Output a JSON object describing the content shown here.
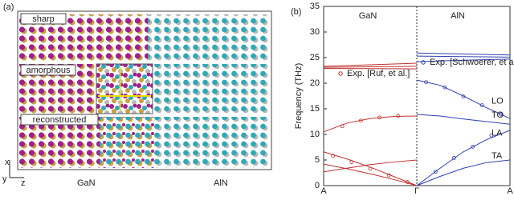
{
  "panel_a": {
    "label": "(a)",
    "interfaces": [
      "sharp",
      "amorphous",
      "reconstructed"
    ],
    "axes": [
      "x",
      "y",
      "z"
    ],
    "materials": [
      "GaN",
      "AlN"
    ]
  },
  "chart_data": {
    "type": "line",
    "panel_label": "(b)",
    "ylabel": "Frequency (THz)",
    "xlim": [
      -1,
      1
    ],
    "xticks": [
      {
        "value": -1,
        "label": "A"
      },
      {
        "value": 0,
        "label": "Γ"
      },
      {
        "value": 1,
        "label": "A"
      }
    ],
    "ylim": [
      0,
      35
    ],
    "yticks": [
      0,
      5,
      10,
      15,
      20,
      25,
      30,
      35
    ],
    "region_labels": [
      "GaN",
      "AlN"
    ],
    "series": [
      {
        "color": "#c03030",
        "x": [
          -1,
          -0.5,
          0
        ],
        "values": [
          23.3,
          23.6,
          23.9
        ]
      },
      {
        "color": "#c03030",
        "x": [
          -1,
          -0.5,
          0
        ],
        "values": [
          23.1,
          23.2,
          23.3
        ]
      },
      {
        "color": "#c03030",
        "x": [
          -1,
          -0.5,
          0
        ],
        "values": [
          22.9,
          22.85,
          22.8
        ]
      },
      {
        "color": "#c03030",
        "x": [
          -1,
          -0.75,
          -0.5,
          -0.25,
          0
        ],
        "values": [
          10.5,
          12.2,
          13.1,
          13.5,
          13.6
        ]
      },
      {
        "color": "#c03030",
        "x": [
          -1,
          -0.75,
          -0.5,
          -0.25,
          0
        ],
        "values": [
          6.6,
          5.2,
          3.6,
          1.8,
          0
        ]
      },
      {
        "color": "#c03030",
        "x": [
          -1,
          -0.75,
          -0.5,
          -0.25,
          0
        ],
        "values": [
          4.2,
          3.3,
          2.3,
          1.2,
          0
        ]
      },
      {
        "color": "#c03030",
        "x": [
          -1,
          -0.75,
          -0.5,
          -0.25,
          0
        ],
        "values": [
          2.7,
          3.4,
          4.1,
          4.6,
          5.0
        ]
      },
      {
        "color": "#3040b0",
        "x": [
          0,
          0.5,
          1
        ],
        "values": [
          25.9,
          25.7,
          25.5
        ]
      },
      {
        "color": "#3040b0",
        "x": [
          0,
          0.5,
          1
        ],
        "values": [
          25.3,
          25.2,
          25.1
        ]
      },
      {
        "color": "#3040b0",
        "x": [
          0,
          0.5,
          1
        ],
        "values": [
          24.2,
          24.5,
          24.7
        ]
      },
      {
        "color": "#3040b0",
        "label": "LO",
        "x": [
          0,
          0.25,
          0.5,
          0.75,
          1
        ],
        "values": [
          20.6,
          19.6,
          17.5,
          15.2,
          13.1
        ]
      },
      {
        "color": "#3040b0",
        "label": "TO",
        "x": [
          0,
          0.25,
          0.5,
          0.75,
          1
        ],
        "values": [
          13.9,
          13.6,
          13.0,
          12.5,
          12.0
        ]
      },
      {
        "color": "#3040b0",
        "label": "LA",
        "x": [
          0,
          0.25,
          0.5,
          0.75,
          1
        ],
        "values": [
          0,
          3.4,
          6.6,
          9.0,
          10.8
        ]
      },
      {
        "color": "#3040b0",
        "label": "TA",
        "x": [
          0,
          0.25,
          0.5,
          0.75,
          1
        ],
        "values": [
          0,
          1.8,
          3.4,
          4.5,
          5.0
        ]
      },
      {
        "name": "Exp. [Ruf, et al.]",
        "color": "#c03030",
        "mode": "markers",
        "x": [
          -0.9,
          -0.7,
          -0.5,
          -0.3,
          -0.1,
          -0.8,
          -0.6,
          -0.4,
          -0.2
        ],
        "values": [
          5.8,
          4.6,
          3.3,
          2.0,
          0.7,
          11.6,
          12.7,
          13.3,
          13.6
        ]
      },
      {
        "name": "Exp. [Schwoerer, et al.]",
        "color": "#3040b0",
        "mode": "markers",
        "x": [
          0.1,
          0.3,
          0.5,
          0.7,
          0.9,
          0.2,
          0.4,
          0.6,
          0.8
        ],
        "values": [
          20.2,
          19.2,
          17.4,
          15.7,
          13.9,
          2.7,
          5.4,
          7.6,
          9.8
        ]
      }
    ]
  }
}
